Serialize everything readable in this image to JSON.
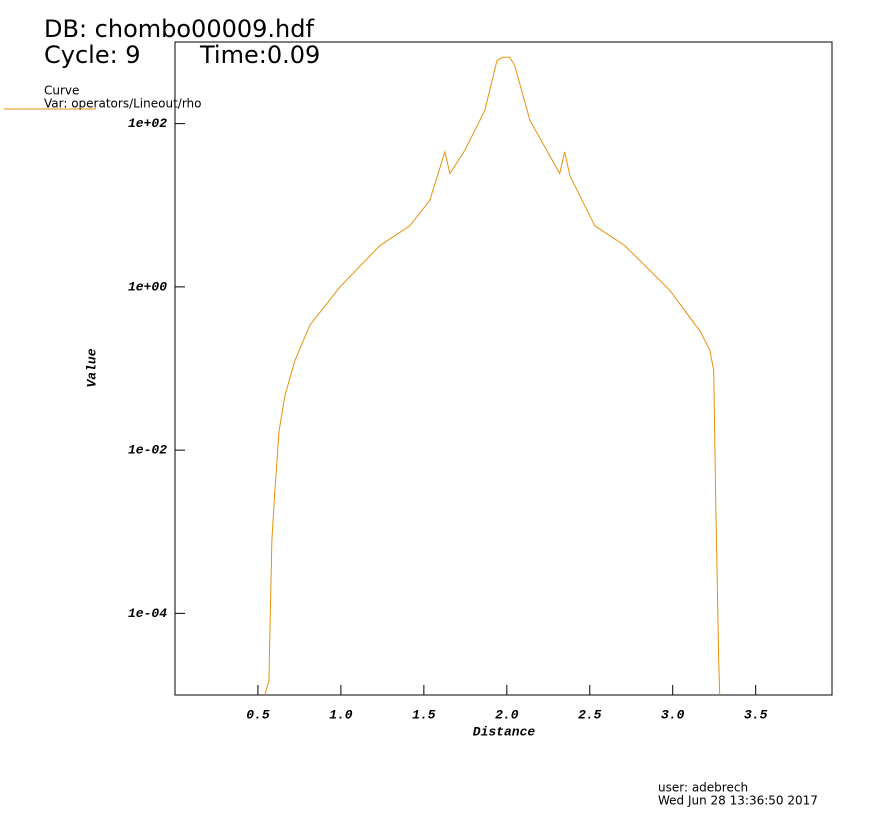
{
  "chart_data": {
    "type": "line",
    "title": "DB: chombo00009.hdf",
    "cycle": "Cycle: 9",
    "time": "Time:0.09",
    "legend_title": "Curve",
    "xlabel": "Distance",
    "ylabel": "Value",
    "user": "user: adebrech",
    "date": "Wed Jun 28 13:36:50 2017",
    "ylog": true,
    "xlim": [
      0,
      3.96
    ],
    "ylim": [
      1e-05,
      1000
    ],
    "xticks": [
      0.5,
      {
        "value": 1,
        "label": "1.0"
      },
      1.5,
      {
        "value": 2,
        "label": "2.0"
      },
      2.5,
      {
        "value": 3,
        "label": "3.0"
      },
      3.5
    ],
    "yticks": [
      {
        "value": 0.0001,
        "label": "1e-04"
      },
      {
        "value": 0.01,
        "label": "1e-02"
      },
      {
        "value": 1,
        "label": "1e+00"
      },
      {
        "value": 100,
        "label": "1e+02"
      }
    ],
    "x": [
      0.542,
      0.566,
      0.584,
      0.602,
      0.627,
      0.663,
      0.723,
      0.813,
      0.994,
      1.235,
      1.416,
      1.536,
      1.627,
      1.657,
      1.747,
      1.867,
      1.94,
      1.976,
      2.018,
      2.048,
      2.139,
      2.319,
      2.349,
      2.38,
      2.53,
      2.711,
      2.982,
      3.163,
      3.223,
      3.247,
      3.259,
      3.277,
      3.283
    ],
    "series": [
      {
        "name": "Var: operators/Lineout/rho",
        "color": "#e8900a",
        "values": [
          1e-05,
          1.5e-05,
          0.0008,
          0.0032,
          0.017,
          0.047,
          0.126,
          0.34,
          1.0,
          3.2,
          5.6,
          11.5,
          45,
          24.5,
          47,
          145,
          590,
          650,
          650,
          510,
          110,
          24.5,
          45,
          23,
          5.6,
          3.2,
          0.91,
          0.29,
          0.17,
          0.095,
          0.0025,
          2.7e-05,
          1e-05
        ]
      }
    ]
  }
}
